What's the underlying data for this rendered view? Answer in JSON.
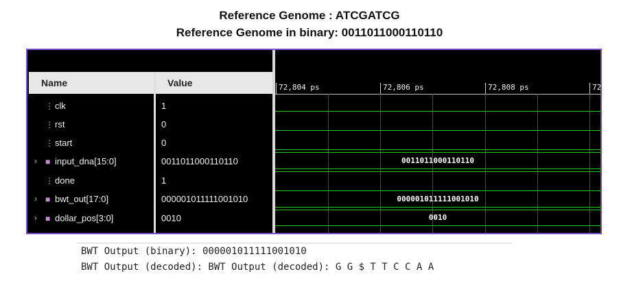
{
  "header": {
    "title": "Reference Genome : ATCGATCG",
    "subtitle": "Reference Genome in binary:  0011011000110110"
  },
  "columns": {
    "name": "Name",
    "value": "Value"
  },
  "signals": [
    {
      "name": "clk",
      "value": "1",
      "expandable": false,
      "icon": "wire-icon"
    },
    {
      "name": "rst",
      "value": "0",
      "expandable": false,
      "icon": "wire-icon"
    },
    {
      "name": "start",
      "value": "0",
      "expandable": false,
      "icon": "wire-icon"
    },
    {
      "name": "input_dna[15:0]",
      "value": "0011011000110110",
      "expandable": true,
      "icon": "bus-icon"
    },
    {
      "name": "done",
      "value": "1",
      "expandable": false,
      "icon": "wire-icon"
    },
    {
      "name": "bwt_out[17:0]",
      "value": "000001011111001010",
      "expandable": true,
      "icon": "bus-icon"
    },
    {
      "name": "dollar_pos[3:0]",
      "value": "0010",
      "expandable": true,
      "icon": "bus-icon"
    }
  ],
  "timeline": {
    "ticks": [
      "72,804 ps",
      "72,806 ps",
      "72,808 ps",
      "72"
    ]
  },
  "bus_labels": {
    "input_dna": "0011011000110110",
    "bwt_out": "000001011111001010",
    "dollar_pos": "0010"
  },
  "console": {
    "line1": "BWT Output (binary): 000001011111001010",
    "line2": "BWT Output (decoded): BWT Output (decoded): G G $ T T C C A A"
  },
  "colors": {
    "border": "#7b4fc9",
    "trace": "#1fcc1f",
    "background": "#000000"
  }
}
